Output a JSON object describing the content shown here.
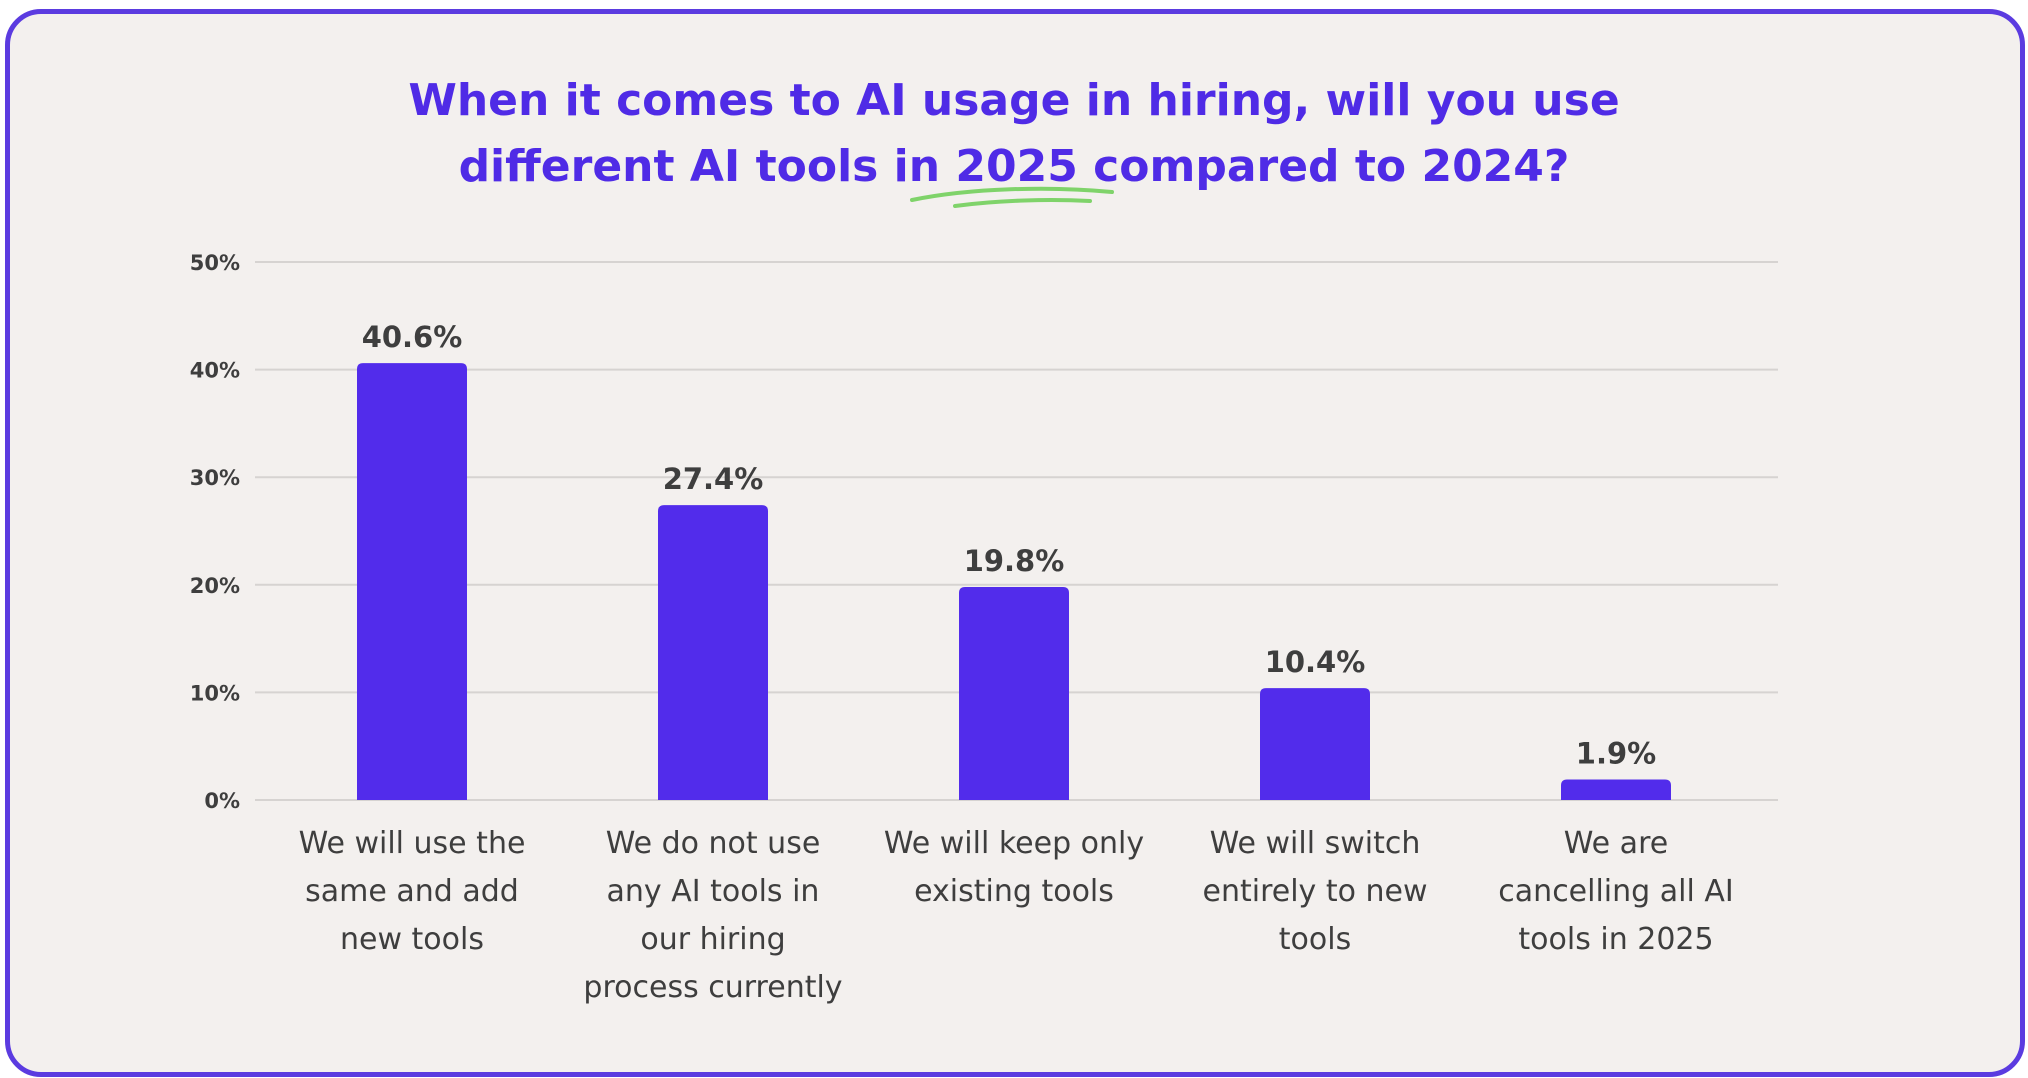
{
  "chart_data": {
    "type": "bar",
    "title": "When it comes to AI usage in hiring, will you use different AI tools in 2025 compared to 2024?",
    "title_lines": [
      "When it comes to AI usage in hiring, will you use",
      "different AI tools in 2025 compared to 2024?"
    ],
    "categories": [
      "We will use the same and add new tools",
      "We do not use any AI tools in our hiring process currently",
      "We will keep only existing tools",
      "We will switch entirely to new tools",
      "We are cancelling all AI tools in 2025"
    ],
    "category_lines": [
      [
        "We will use the",
        "same and add",
        "new tools"
      ],
      [
        "We do not use",
        "any AI tools in",
        "our hiring",
        "process currently"
      ],
      [
        "We will keep only",
        "existing tools"
      ],
      [
        "We will switch",
        "entirely to new",
        "tools"
      ],
      [
        "We are",
        "cancelling all AI",
        "tools in 2025"
      ]
    ],
    "values": [
      40.6,
      27.4,
      19.8,
      10.4,
      1.9
    ],
    "data_labels": [
      "40.6%",
      "27.4%",
      "19.8%",
      "10.4%",
      "1.9%"
    ],
    "yticks": [
      "0%",
      "10%",
      "20%",
      "30%",
      "40%",
      "50%"
    ],
    "ylim": [
      0,
      50
    ],
    "xlabel": "",
    "ylabel": "",
    "grid": true,
    "legend": "none",
    "colors": {
      "bar": "#522ceb",
      "title": "#4f2be6",
      "underline": "#7fd36a",
      "border": "#5b3be0",
      "background": "#f3f0ee",
      "gridline": "#d6d3d1"
    }
  }
}
